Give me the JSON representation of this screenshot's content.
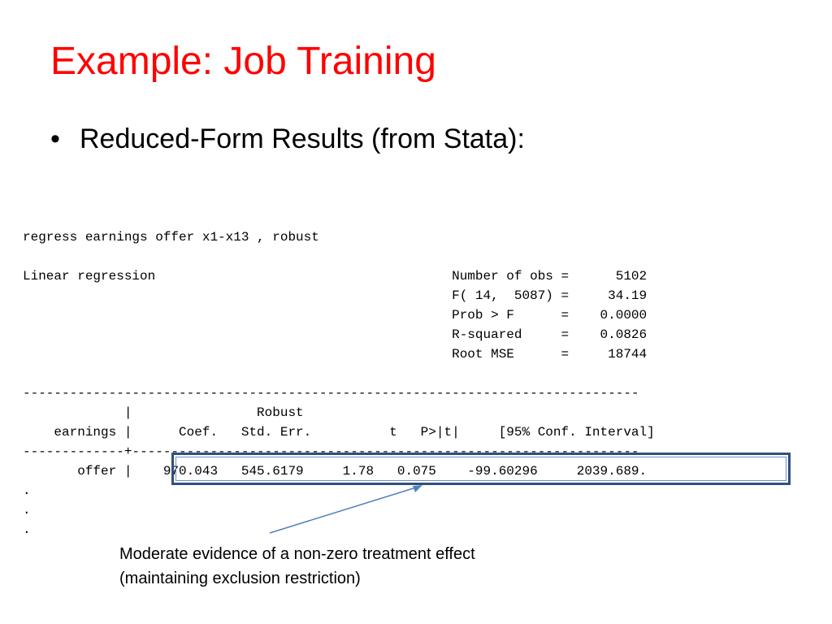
{
  "slide": {
    "title": "Example: Job Training",
    "bullet_symbol": "•",
    "bullet_text": "Reduced-Form Results (from Stata):"
  },
  "stata_output": {
    "command": "regress earnings offer x1-x13 , robust",
    "header_left": "Linear regression",
    "stats": [
      {
        "label": "Number of obs",
        "value": "5102"
      },
      {
        "label": "F( 14,  5087)",
        "value": "34.19"
      },
      {
        "label": "Prob > F",
        "value": "0.0000"
      },
      {
        "label": "R-squared",
        "value": "0.0826"
      },
      {
        "label": "Root MSE",
        "value": "18744"
      }
    ],
    "table_rule": "-------------------------------------------------------------------------------",
    "robust_label": "Robust",
    "depvar": "earnings",
    "columns": [
      "Coef.",
      "Std. Err.",
      "t",
      "P>|t|",
      "[95% Conf. Interval]"
    ],
    "separator_rule": "-------------+-----------------------------------------------------------------",
    "rows": [
      {
        "name": "offer",
        "coef": "970.043",
        "se": "545.6179",
        "t": "1.78",
        "p": "0.075",
        "ci_low": "-99.60296",
        "ci_high": "2039.689"
      }
    ],
    "continuation": ".",
    "end_marker": "."
  },
  "annotation": {
    "line1": "Moderate evidence of a non-zero treatment effect",
    "line2": "(maintaining exclusion restriction)",
    "color": "#4f81bd"
  },
  "highlight_color": "#2f4f80"
}
